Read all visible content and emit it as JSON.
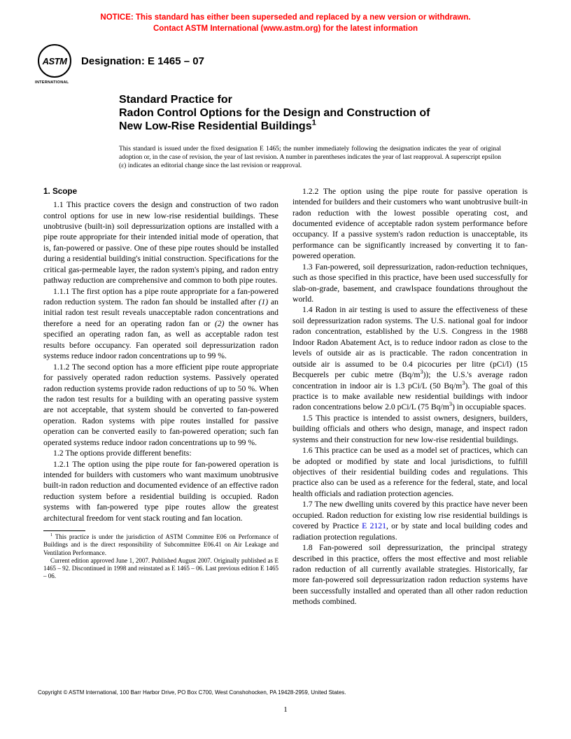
{
  "notice": {
    "line1": "NOTICE: This standard has either been superseded and replaced by a new version or withdrawn.",
    "line2_pre": "Contact ASTM International (",
    "line2_url": "www.astm.org",
    "line2_post": ") for the latest information"
  },
  "logo": {
    "text": "ASTM",
    "sub": "INTERNATIONAL"
  },
  "designation": "Designation: E 1465 – 07",
  "title": {
    "lead": "Standard Practice for",
    "main_l1": "Radon Control Options for the Design and Construction of",
    "main_l2": "New Low-Rise Residential Buildings",
    "sup": "1"
  },
  "issue_note": "This standard is issued under the fixed designation E 1465; the number immediately following the designation indicates the year of original adoption or, in the case of revision, the year of last revision. A number in parentheses indicates the year of last reapproval. A superscript epsilon (ε) indicates an editorial change since the last revision or reapproval.",
  "section_head": "1. Scope",
  "p_1_1": "1.1 This practice covers the design and construction of two radon control options for use in new low-rise residential buildings. These unobtrusive (built-in) soil depressurization options are installed with a pipe route appropriate for their intended initial mode of operation, that is, fan-powered or passive. One of these pipe routes should be installed during a residential building's initial construction. Specifications for the critical gas-permeable layer, the radon system's piping, and radon entry pathway reduction are comprehensive and common to both pipe routes.",
  "p_1_1_1_a": "1.1.1 The first option has a pipe route appropriate for a fan-powered radon reduction system. The radon fan should be installed after ",
  "p_1_1_1_i1": "(1)",
  "p_1_1_1_b": " an initial radon test result reveals unacceptable radon concentrations and therefore a need for an operating radon fan or ",
  "p_1_1_1_i2": "(2)",
  "p_1_1_1_c": " the owner has specified an operating radon fan, as well as acceptable radon test results before occupancy. Fan operated soil depressurization radon systems reduce indoor radon concentrations up to 99 %.",
  "p_1_1_2": "1.1.2 The second option has a more efficient pipe route appropriate for passively operated radon reduction systems. Passively operated radon reduction systems provide radon reductions of up to 50 %. When the radon test results for a building with an operating passive system are not acceptable, that system should be converted to fan-powered operation. Radon systems with pipe routes installed for passive operation can be converted easily to fan-powered operation; such fan operated systems reduce indoor radon concentrations up to 99 %.",
  "p_1_2": "1.2 The options provide different benefits:",
  "p_1_2_1": "1.2.1 The option using the pipe route for fan-powered operation is intended for builders with customers who want maximum unobtrusive built-in radon reduction and documented evidence of an effective radon reduction system before a residential building is occupied. Radon systems with fan-powered type pipe routes allow the greatest architectural freedom for vent stack routing and fan location.",
  "p_1_2_2": "1.2.2 The option using the pipe route for passive operation is intended for builders and their customers who want unobtrusive built-in radon reduction with the lowest possible operating cost, and documented evidence of acceptable radon system performance before occupancy. If a passive system's radon reduction is unacceptable, its performance can be significantly increased by converting it to fan-powered operation.",
  "p_1_3": "1.3 Fan-powered, soil depressurization, radon-reduction techniques, such as those specified in this practice, have been used successfully for slab-on-grade, basement, and crawlspace foundations throughout the world.",
  "p_1_4_a": "1.4 Radon in air testing is used to assure the effectiveness of these soil depressurization radon systems. The U.S. national goal for indoor radon concentration, established by the U.S. Congress in the 1988 Indoor Radon Abatement Act, is to reduce indoor radon as close to the levels of outside air as is practicable. The radon concentration in outside air is assumed to be 0.4 picocuries per litre (pCi/l) (15 Becquerels per cubic metre (Bq/m",
  "p_1_4_b": ")); the U.S.'s average radon concentration in indoor air is 1.3 pCi/L (50 Bq/m",
  "p_1_4_c": "). The goal of this practice is to make available new residential buildings with indoor radon concentrations below 2.0 pCi/L (75 Bq/m",
  "p_1_4_d": ") in occupiable spaces.",
  "p_1_5": "1.5 This practice is intended to assist owners, designers, builders, building officials and others who design, manage, and inspect radon systems and their construction for new low-rise residential buildings.",
  "p_1_6": "1.6 This practice can be used as a model set of practices, which can be adopted or modified by state and local jurisdictions, to fulfill objectives of their residential building codes and regulations. This practice also can be used as a reference for the federal, state, and local health officials and radiation protection agencies.",
  "p_1_7_a": "1.7 The new dwelling units covered by this practice have never been occupied. Radon reduction for existing low rise residential buildings is covered by Practice ",
  "p_1_7_link": "E 2121",
  "p_1_7_b": ", or by state and local building codes and radiation protection regulations.",
  "p_1_8": "1.8 Fan-powered soil depressurization, the principal strategy described in this practice, offers the most effective and most reliable radon reduction of all currently available strategies. Historically, far more fan-powered soil depressurization radon reduction systems have been successfully installed and operated than all other radon reduction methods combined.",
  "footnote_1_a": " This practice is under the jurisdiction of ASTM Committee E06 on Performance of Buildings and is the direct responsibility of Subcommittee E06.41 on Air Leakage and Ventilation Performance.",
  "footnote_1_b": "Current edition approved June 1, 2007. Published August 2007. Originally published as E 1465 – 92. Discontinued in 1998 and reinstated as E 1465 – 06. Last previous edition E 1465 – 06.",
  "copyright": "Copyright © ASTM International, 100 Barr Harbor Drive, PO Box C700, West Conshohocken, PA 19428-2959, United States.",
  "page_num": "1",
  "sup3": "3"
}
